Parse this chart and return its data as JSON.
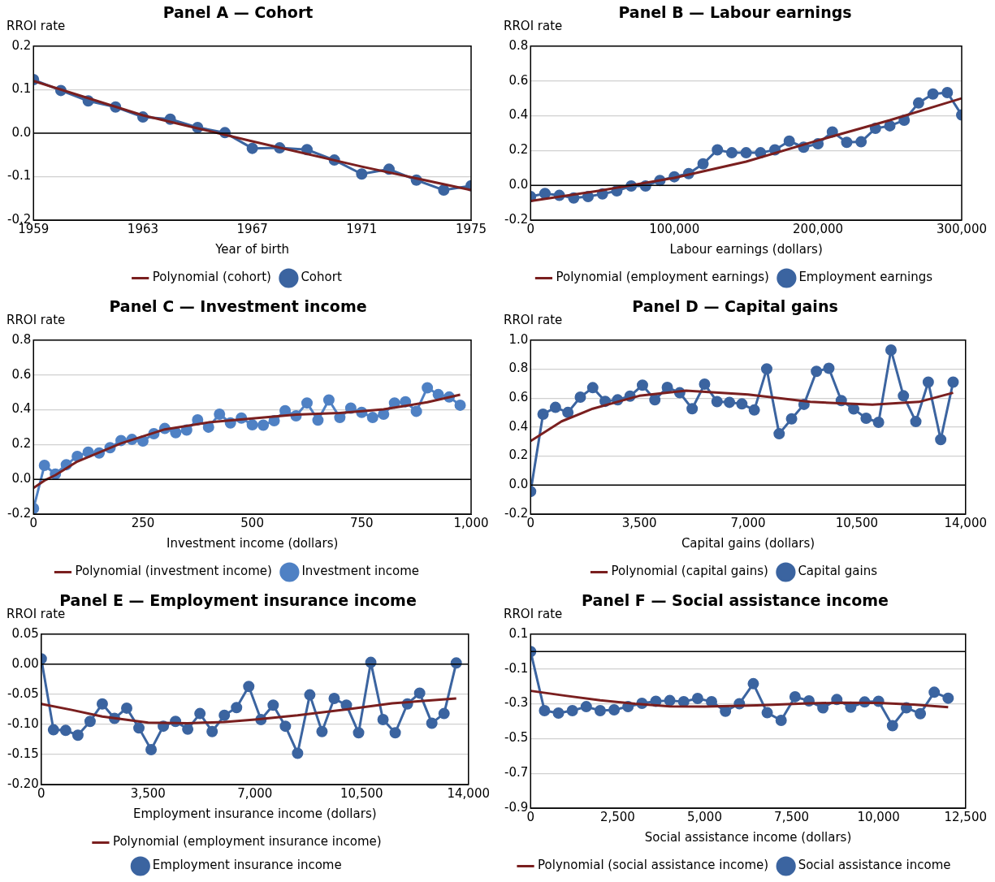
{
  "chart_data": [
    {
      "type": "line",
      "title": "Panel A — Cohort",
      "xlabel": "Year of birth",
      "ylabel": "RROI rate",
      "x": [
        1959,
        1960,
        1961,
        1962,
        1963,
        1964,
        1965,
        1966,
        1967,
        1968,
        1969,
        1970,
        1971,
        1972,
        1973,
        1974,
        1975
      ],
      "series": [
        {
          "name": "Cohort",
          "color": "#3b64a0",
          "marker": "circle",
          "values": [
            0.123,
            0.098,
            0.074,
            0.06,
            0.037,
            0.032,
            0.013,
            0.001,
            -0.035,
            -0.034,
            -0.038,
            -0.062,
            -0.094,
            -0.083,
            -0.108,
            -0.131,
            -0.121
          ]
        },
        {
          "name": "Polynomial (cohort)",
          "color": "#7a1f1f",
          "marker": "none",
          "x": [
            1959,
            1963,
            1965,
            1967,
            1971,
            1975
          ],
          "values": [
            0.12,
            0.041,
            0.011,
            -0.019,
            -0.077,
            -0.131
          ]
        }
      ],
      "xlim": [
        1959,
        1975
      ],
      "xticks": [
        1959,
        1963,
        1967,
        1971,
        1975
      ],
      "ylim": [
        -0.2,
        0.2
      ],
      "yticks": [
        -0.2,
        -0.1,
        {
          "value": 0,
          "label": "0.0"
        },
        0.1,
        0.2
      ],
      "grid": "y",
      "legend": "bottom",
      "ref_lines": [
        {
          "axis": "y",
          "value": 0,
          "color": "#000000"
        }
      ]
    },
    {
      "type": "line",
      "title": "Panel B — Labour earnings",
      "xlabel": "Labour earnings (dollars)",
      "ylabel": "RROI rate",
      "x": [
        0,
        10000,
        20000,
        30000,
        40000,
        50000,
        60000,
        70000,
        80000,
        90000,
        100000,
        110000,
        120000,
        130000,
        140000,
        150000,
        160000,
        170000,
        180000,
        190000,
        200000,
        210000,
        220000,
        230000,
        240000,
        250000,
        260000,
        270000,
        280000,
        290000,
        300000
      ],
      "series": [
        {
          "name": "Employment earnings",
          "color": "#3b64a0",
          "marker": "circle",
          "values": [
            -0.065,
            -0.047,
            -0.058,
            -0.073,
            -0.065,
            -0.05,
            -0.032,
            -0.004,
            -0.004,
            0.028,
            0.049,
            0.067,
            0.123,
            0.204,
            0.187,
            0.187,
            0.187,
            0.204,
            0.254,
            0.219,
            0.239,
            0.307,
            0.247,
            0.25,
            0.327,
            0.342,
            0.374,
            0.473,
            0.525,
            0.533,
            0.404
          ]
        },
        {
          "name": "Polynomial (employment earnings)",
          "color": "#7a1f1f",
          "marker": "none",
          "x": [
            0,
            50000,
            100000,
            150000,
            200000,
            250000,
            300000
          ],
          "values": [
            -0.09,
            -0.028,
            0.043,
            0.136,
            0.258,
            0.374,
            0.5
          ]
        }
      ],
      "xlim": [
        0,
        300000
      ],
      "xticks": [
        0,
        {
          "value": 100000,
          "label": "100,000"
        },
        {
          "value": 200000,
          "label": "200,000"
        },
        {
          "value": 300000,
          "label": "300,000"
        }
      ],
      "ylim": [
        -0.2,
        0.8
      ],
      "yticks": [
        -0.2,
        {
          "value": 0,
          "label": "0.0"
        },
        0.2,
        0.4,
        0.6,
        0.8
      ],
      "grid": "y",
      "legend": "bottom",
      "ref_lines": [
        {
          "axis": "y",
          "value": 0,
          "color": "#000000"
        }
      ]
    },
    {
      "type": "line",
      "title": "Panel C — Investment income",
      "xlabel": "Investment income (dollars)",
      "ylabel": "RROI rate",
      "x": [
        0,
        25,
        50,
        75,
        100,
        125,
        150,
        175,
        200,
        225,
        250,
        275,
        300,
        325,
        350,
        375,
        400,
        425,
        450,
        475,
        500,
        525,
        550,
        575,
        600,
        625,
        650,
        675,
        700,
        725,
        750,
        775,
        800,
        825,
        850,
        875,
        900,
        925,
        950,
        975
      ],
      "series": [
        {
          "name": "Investment income",
          "color": "#4f81c4",
          "marker": "circle",
          "values": [
            -0.167,
            0.08,
            0.03,
            0.084,
            0.132,
            0.156,
            0.151,
            0.182,
            0.223,
            0.229,
            0.22,
            0.262,
            0.292,
            0.268,
            0.283,
            0.342,
            0.3,
            0.374,
            0.324,
            0.352,
            0.313,
            0.311,
            0.337,
            0.394,
            0.365,
            0.439,
            0.34,
            0.456,
            0.355,
            0.409,
            0.385,
            0.355,
            0.374,
            0.439,
            0.446,
            0.391,
            0.526,
            0.487,
            0.473,
            0.426
          ]
        },
        {
          "name": "Polynomial (investment income)",
          "color": "#7a1f1f",
          "marker": "none",
          "x": [
            0,
            25,
            50,
            100,
            200,
            300,
            400,
            500,
            600,
            700,
            800,
            900,
            975
          ],
          "values": [
            -0.05,
            -0.007,
            0.024,
            0.102,
            0.207,
            0.287,
            0.327,
            0.35,
            0.372,
            0.381,
            0.402,
            0.443,
            0.486
          ]
        }
      ],
      "xlim": [
        0,
        1000
      ],
      "xticks": [
        0,
        250,
        500,
        750,
        {
          "value": 1000,
          "label": "1,000"
        }
      ],
      "ylim": [
        -0.2,
        0.8
      ],
      "yticks": [
        -0.2,
        {
          "value": 0,
          "label": "0.0"
        },
        0.2,
        0.4,
        0.6,
        0.8
      ],
      "grid": "y",
      "legend": "bottom",
      "ref_lines": [
        {
          "axis": "y",
          "value": 0,
          "color": "#000000"
        }
      ]
    },
    {
      "type": "line",
      "title": "Panel D — Capital gains",
      "xlabel": "Capital gains (dollars)",
      "ylabel": "RROI rate",
      "x": [
        0,
        400,
        800,
        1200,
        1600,
        2000,
        2400,
        2800,
        3200,
        3600,
        4000,
        4400,
        4800,
        5200,
        5600,
        6000,
        6400,
        6800,
        7200,
        7600,
        8000,
        8400,
        8800,
        9200,
        9600,
        10000,
        10400,
        10800,
        11200,
        11600,
        12000,
        12400,
        12800,
        13200,
        13600
      ],
      "series": [
        {
          "name": "Capital gains",
          "color": "#3b64a0",
          "marker": "circle",
          "values": [
            -0.044,
            0.489,
            0.536,
            0.501,
            0.607,
            0.672,
            0.578,
            0.588,
            0.614,
            0.689,
            0.588,
            0.674,
            0.637,
            0.527,
            0.696,
            0.576,
            0.571,
            0.56,
            0.518,
            0.801,
            0.354,
            0.457,
            0.557,
            0.785,
            0.806,
            0.583,
            0.525,
            0.461,
            0.433,
            0.932,
            0.616,
            0.438,
            0.71,
            0.314,
            0.71
          ]
        },
        {
          "name": "Polynomial (capital gains)",
          "color": "#7a1f1f",
          "marker": "none",
          "x": [
            0,
            1000,
            2000,
            3500,
            5000,
            7000,
            9000,
            11000,
            12500,
            13600
          ],
          "values": [
            0.304,
            0.44,
            0.527,
            0.616,
            0.651,
            0.625,
            0.574,
            0.555,
            0.574,
            0.637
          ]
        }
      ],
      "xlim": [
        0,
        14000
      ],
      "xticks": [
        0,
        {
          "value": 3500,
          "label": "3,500"
        },
        {
          "value": 7000,
          "label": "7,000"
        },
        {
          "value": 10500,
          "label": "10,500"
        },
        {
          "value": 14000,
          "label": "14,000"
        }
      ],
      "ylim": [
        -0.2,
        1
      ],
      "yticks": [
        -0.2,
        {
          "value": 0,
          "label": "0.0"
        },
        0.2,
        0.4,
        0.6,
        0.8,
        {
          "value": 1,
          "label": "1.0"
        }
      ],
      "grid": "y",
      "legend": "bottom",
      "ref_lines": [
        {
          "axis": "y",
          "value": 0,
          "color": "#000000"
        }
      ]
    },
    {
      "type": "line",
      "title": "Panel E — Employment insurance income",
      "xlabel": "Employment insurance income (dollars)",
      "ylabel": "RROI rate",
      "x": [
        0,
        400,
        800,
        1200,
        1600,
        2000,
        2400,
        2800,
        3200,
        3600,
        4000,
        4400,
        4800,
        5200,
        5600,
        6000,
        6400,
        6800,
        7200,
        7600,
        8000,
        8400,
        8800,
        9200,
        9600,
        10000,
        10400,
        10800,
        11200,
        11600,
        12000,
        12400,
        12800,
        13200,
        13600
      ],
      "series": [
        {
          "name": "Employment insurance income",
          "color": "#3b64a0",
          "marker": "circle",
          "values": [
            0.009,
            -0.109,
            -0.11,
            -0.118,
            -0.095,
            -0.066,
            -0.09,
            -0.073,
            -0.106,
            -0.142,
            -0.103,
            -0.095,
            -0.108,
            -0.082,
            -0.112,
            -0.085,
            -0.072,
            -0.037,
            -0.092,
            -0.068,
            -0.103,
            -0.148,
            -0.051,
            -0.112,
            -0.057,
            -0.068,
            -0.114,
            0.003,
            -0.092,
            -0.114,
            -0.066,
            -0.048,
            -0.098,
            -0.082,
            0.002
          ]
        },
        {
          "name": "Polynomial (employment insurance income)",
          "color": "#7a1f1f",
          "marker": "none",
          "x": [
            0,
            1000,
            2000,
            3500,
            4800,
            6000,
            7000,
            8400,
            10000,
            11500,
            13600
          ],
          "values": [
            -0.066,
            -0.076,
            -0.087,
            -0.097,
            -0.098,
            -0.096,
            -0.092,
            -0.085,
            -0.075,
            -0.065,
            -0.057
          ]
        }
      ],
      "xlim": [
        0,
        14000
      ],
      "xticks": [
        0,
        {
          "value": 3500,
          "label": "3,500"
        },
        {
          "value": 7000,
          "label": "7,000"
        },
        {
          "value": 10500,
          "label": "10,500"
        },
        {
          "value": 14000,
          "label": "14,000"
        }
      ],
      "ylim": [
        -0.2,
        0.05
      ],
      "yticks": [
        {
          "value": -0.2,
          "label": "-0.20"
        },
        -0.15,
        {
          "value": -0.1,
          "label": "-0.10"
        },
        -0.05,
        {
          "value": 0,
          "label": "0.00"
        },
        0.05
      ],
      "grid": "y",
      "legend": "bottom",
      "ref_lines": [
        {
          "axis": "y",
          "value": 0,
          "color": "#000000"
        }
      ]
    },
    {
      "type": "line",
      "title": "Panel F — Social assistance income",
      "xlabel": "Social assistance income (dollars)",
      "ylabel": "RROI rate",
      "x": [
        0,
        400,
        800,
        1200,
        1600,
        2000,
        2400,
        2800,
        3200,
        3600,
        4000,
        4400,
        4800,
        5200,
        5600,
        6000,
        6400,
        6800,
        7200,
        7600,
        8000,
        8400,
        8800,
        9200,
        9600,
        10000,
        10400,
        10800,
        11200,
        11600,
        12000
      ],
      "series": [
        {
          "name": "Social assistance income",
          "color": "#3b64a0",
          "marker": "circle",
          "values": [
            0,
            -0.34,
            -0.354,
            -0.34,
            -0.317,
            -0.34,
            -0.335,
            -0.317,
            -0.298,
            -0.286,
            -0.282,
            -0.288,
            -0.27,
            -0.288,
            -0.343,
            -0.3,
            -0.185,
            -0.352,
            -0.396,
            -0.26,
            -0.284,
            -0.324,
            -0.276,
            -0.32,
            -0.29,
            -0.286,
            -0.426,
            -0.324,
            -0.357,
            -0.234,
            -0.268
          ]
        },
        {
          "name": "Polynomial (social assistance income)",
          "color": "#7a1f1f",
          "marker": "none",
          "x": [
            0,
            1000,
            2000,
            3000,
            4000,
            5000,
            6500,
            8000,
            9000,
            10000,
            11000,
            12000
          ],
          "values": [
            -0.226,
            -0.254,
            -0.28,
            -0.3,
            -0.315,
            -0.317,
            -0.31,
            -0.298,
            -0.294,
            -0.296,
            -0.305,
            -0.32
          ]
        }
      ],
      "xlim": [
        0,
        12500
      ],
      "xticks": [
        0,
        {
          "value": 2500,
          "label": "2,500"
        },
        {
          "value": 5000,
          "label": "5,000"
        },
        {
          "value": 7500,
          "label": "7,500"
        },
        {
          "value": 10000,
          "label": "10,000"
        },
        {
          "value": 12500,
          "label": "12,500"
        }
      ],
      "ylim": [
        -0.9,
        0.1
      ],
      "yticks": [
        -0.9,
        -0.7,
        -0.5,
        -0.3,
        -0.1,
        0.1
      ],
      "grid": "y",
      "legend": "bottom",
      "ref_lines": [
        {
          "axis": "y",
          "value": 0,
          "color": "#000000"
        }
      ]
    }
  ]
}
